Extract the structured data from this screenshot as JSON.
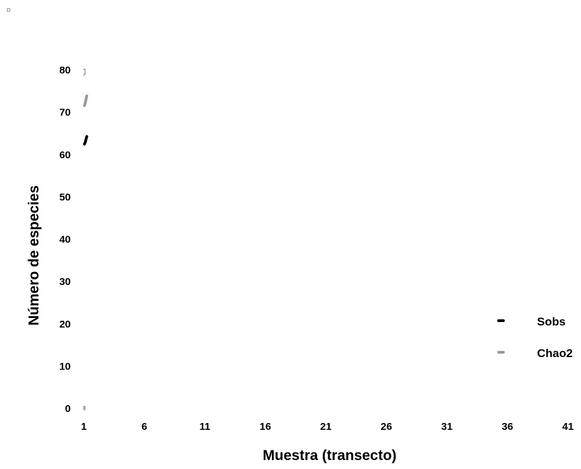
{
  "chart_data": {
    "type": "line",
    "xlabel": "Muestra (transecto)",
    "ylabel": "Número de especies",
    "x_ticks": [
      "1",
      "6",
      "11",
      "16",
      "21",
      "26",
      "31",
      "36",
      "41"
    ],
    "y_ticks": [
      "0",
      "10",
      "20",
      "30",
      "40",
      "50",
      "60",
      "70",
      "80"
    ],
    "xlim": [
      1,
      41
    ],
    "ylim": [
      0,
      80
    ],
    "grid": false,
    "legend_position": "right",
    "series": [
      {
        "name": "Sobs",
        "color": "#000000",
        "x": [
          1.05,
          1.1,
          1.15,
          1.2,
          1.25
        ],
        "y": [
          62.5,
          62.8,
          63.2,
          63.8,
          64.3
        ]
      },
      {
        "name": "Chao2",
        "color": "#999999",
        "x": [
          1.05,
          1.1,
          1.15,
          1.2,
          1.25
        ],
        "y": [
          71.6,
          72.0,
          72.6,
          73.3,
          73.9
        ]
      }
    ],
    "artifacts": [
      {
        "color": "#999999",
        "x": [
          1.0,
          1.1,
          1.1,
          1.0
        ],
        "y": [
          80.2,
          80.2,
          79.0,
          78.8
        ]
      },
      {
        "color": "#999999",
        "x": [
          1.0,
          1.0,
          1.1,
          1.1
        ],
        "y": [
          -0.3,
          0.5,
          0.5,
          -0.3
        ]
      }
    ]
  }
}
